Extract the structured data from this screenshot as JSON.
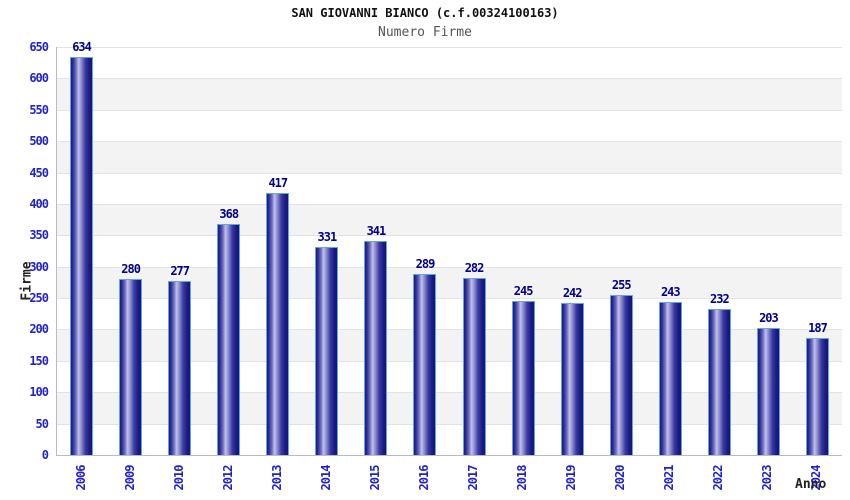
{
  "chart_data": {
    "type": "bar",
    "title": "SAN GIOVANNI BIANCO (c.f.00324100163)",
    "subtitle": "Numero Firme",
    "xlabel": "Anno",
    "ylabel": "Firme",
    "categories": [
      "2006",
      "2009",
      "2010",
      "2012",
      "2013",
      "2014",
      "2015",
      "2016",
      "2017",
      "2018",
      "2019",
      "2020",
      "2021",
      "2022",
      "2023",
      "2024"
    ],
    "values": [
      634,
      280,
      277,
      368,
      417,
      331,
      341,
      289,
      282,
      245,
      242,
      255,
      243,
      232,
      203,
      187
    ],
    "ylim": [
      0,
      650
    ],
    "ytick_step": 50,
    "grid": "horizontal, alternating shaded bands",
    "legend": "none",
    "colors": {
      "tick_label": "#2222cc",
      "value_label": "#00008c",
      "bar_dark": "#181880",
      "bar_light": "#c2c2ea",
      "bar_border": "#62a6e0",
      "band_gray": "#f3f3f3",
      "band_white": "#ffffff",
      "gridline": "#e2e2e2",
      "axis_line": "#b4bcc8",
      "title": "#111111",
      "subtitle": "#555555",
      "axis_title": "#222222"
    }
  }
}
